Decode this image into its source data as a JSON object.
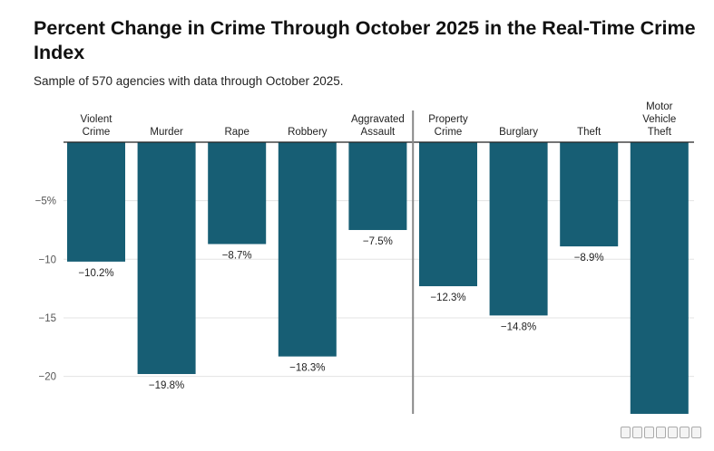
{
  "chart_data": {
    "type": "bar",
    "title": "Percent Change in Crime Through October 2025 in the Real-Time Crime Index",
    "subtitle": "Sample of 570 agencies with data through October 2025.",
    "categories": [
      [
        "Violent",
        "Crime"
      ],
      [
        "Murder"
      ],
      [
        "Rape"
      ],
      [
        "Robbery"
      ],
      [
        "Aggravated",
        "Assault"
      ],
      [
        "Property",
        "Crime"
      ],
      [
        "Burglary"
      ],
      [
        "Theft"
      ],
      [
        "Motor",
        "Vehicle",
        "Theft"
      ]
    ],
    "values": [
      -10.2,
      -19.8,
      -8.7,
      -18.3,
      -7.5,
      -12.3,
      -14.8,
      -8.9,
      -23.2
    ],
    "value_labels": [
      "−10.2%",
      "−19.8%",
      "−8.7%",
      "−18.3%",
      "−7.5%",
      "−12.3%",
      "−14.8%",
      "−8.9%",
      ""
    ],
    "yticks": [
      -5,
      -10,
      -15,
      -20
    ],
    "ytick_labels": [
      "−5%",
      "−10",
      "−15",
      "−20"
    ],
    "ylim": [
      -23.2,
      0
    ],
    "bar_color": "#175e74",
    "separator_after_index": 4,
    "grid": true
  }
}
